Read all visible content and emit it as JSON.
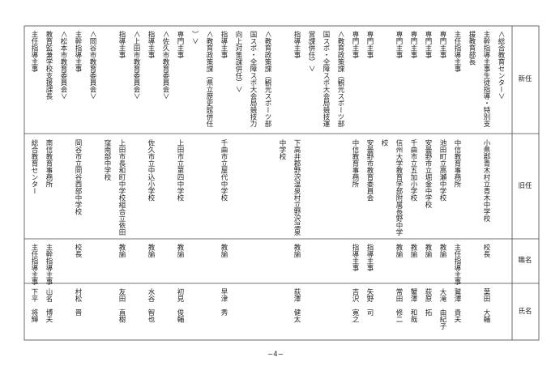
{
  "table": {
    "header": {
      "new": "新任",
      "old": "旧任",
      "position": "職名",
      "name": "氏名"
    },
    "entries": [
      {
        "section": [
          "＜総合教育センター＞"
        ],
        "new": [
          "主幹指導主事生徒指導・特別支",
          "援教育部長"
        ],
        "old": [
          "小県郡青木村立青木中学校"
        ],
        "position": "校長",
        "name": "葉田　大輔"
      },
      {
        "new": [
          "主任指導主事"
        ],
        "old": [
          "中信教育事務所"
        ],
        "position": "主任指導主事",
        "name": "鷲澤　貴夫"
      },
      {
        "new": [
          "専門主事"
        ],
        "old": [
          "池田町立高瀬中学校"
        ],
        "position": "教諭",
        "name": "大滝　由紀子"
      },
      {
        "new": [
          "専門主事"
        ],
        "old": [
          "安曇野市立堀金中学校"
        ],
        "position": "教諭",
        "name": "荻原　拓"
      },
      {
        "new": [
          "専門主事"
        ],
        "old": [
          "千曲市立五加小学校"
        ],
        "position": "教諭",
        "name": "蟹澤　和哉"
      },
      {
        "new": [
          "専門主事"
        ],
        "old": [
          "信州大学教育学部附属長野中学",
          "校"
        ],
        "position": "教諭",
        "name": "常田　修二"
      },
      {
        "new": [
          "専門主事"
        ],
        "old": [
          "安曇野市教育委員会"
        ],
        "position": "指導主事",
        "name": "矢野　司"
      },
      {
        "new": [
          "専門主事"
        ],
        "old": [
          "中信教育事務所"
        ],
        "position": "指導主事",
        "name": "吉沢　寛之"
      },
      {
        "section": [
          "＜教育政策課（観光スポーツ部",
          "国スポ・全障スポ大会局競技運",
          "営課併任）＞"
        ],
        "new": [
          "指導主事"
        ],
        "old": [
          "下高井郡野沢温泉村立野沢温泉",
          "中学校"
        ],
        "position": "教諭",
        "name": "荻澤　健太"
      },
      {
        "section": [
          "＜教育政策課（観光スポーツ部",
          "国スポ・全障スポ大会局競技力",
          "向上対策課併任）＞"
        ],
        "new": [
          "指導主事"
        ],
        "old": [
          "千曲市立屋代中学校"
        ],
        "position": "教諭",
        "name": "早津　秀"
      },
      {
        "section": [
          "＜教育政策課（県立歴史館併任",
          "）＞"
        ],
        "new": [
          "専門主事"
        ],
        "old": [
          "上田市立第四中学校"
        ],
        "position": "教諭",
        "name": "初見　俊輔"
      },
      {
        "section": [
          "＜佐久市教育委員会＞"
        ],
        "new": [
          "指導主事"
        ],
        "old": [
          "佐久市立中込小学校"
        ],
        "position": "教諭",
        "name": "水谷　智也"
      },
      {
        "section": [
          "＜上田市教育委員会＞"
        ],
        "new": [
          "指導主事"
        ],
        "old": [
          "上田市長和町中学校組合立依田",
          "窪南部中学校"
        ],
        "position": "教諭",
        "name": "友田　直樹"
      },
      {
        "section": [
          "＜岡谷市教育委員会＞"
        ],
        "new": [
          "主幹指導主事"
        ],
        "old": [
          "岡谷市立岡谷西部中学校"
        ],
        "position": "校長",
        "name": "村松　晋"
      },
      {
        "section": [
          "＜松本市教育委員会＞"
        ],
        "new": [
          "教育監兼学校支援課長"
        ],
        "old": [
          "南信教育事務所"
        ],
        "position": "主幹指導主事",
        "name": "山名　博夫"
      },
      {
        "new": [
          "主任指導主事"
        ],
        "old": [
          "総合教育センター"
        ],
        "position": "主任指導主事",
        "name": "下平　将輝"
      }
    ]
  },
  "footer": "−4−"
}
